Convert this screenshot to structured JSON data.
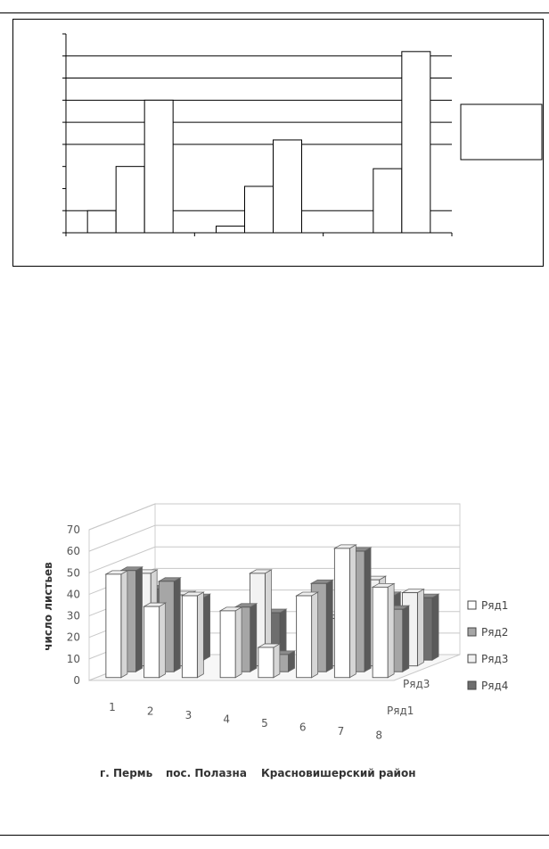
{
  "chart_data": [
    {
      "type": "bar",
      "groups": [
        [
          1,
          3,
          6
        ],
        [
          0.3,
          2.1,
          4.2
        ],
        [
          2.9,
          8.2
        ]
      ],
      "ylim": [
        0,
        9
      ],
      "gridlines": [
        1,
        4,
        5,
        6,
        7,
        8
      ],
      "legend": "right",
      "legend_entries": []
    },
    {
      "type": "bar",
      "categories": [
        "1",
        "2",
        "3",
        "4",
        "5",
        "6",
        "7",
        "8"
      ],
      "depth_labels": [
        "Ряд3",
        "Ряд1"
      ],
      "ylabel": "число листьев",
      "yticks": [
        "0",
        "10",
        "20",
        "30",
        "40",
        "50",
        "60",
        "70"
      ],
      "ylim": [
        0,
        70
      ],
      "grid": true,
      "legend": "right",
      "series": [
        {
          "name": "Ряд1",
          "values": [
            48,
            33,
            38,
            31,
            14,
            38,
            60,
            42
          ],
          "color": "#ffffff"
        },
        {
          "name": "Ряд2",
          "values": [
            47,
            42,
            null,
            30,
            8,
            41,
            56,
            29
          ],
          "color": "#a6a6a6"
        },
        {
          "name": "Ряд3",
          "values": [
            43,
            33,
            null,
            43,
            null,
            22,
            40,
            34
          ],
          "color": "#f2f2f2"
        },
        {
          "name": "Ряд4",
          "values": [
            33,
            29,
            null,
            22,
            19,
            23,
            30,
            29
          ],
          "color": "#6e6e6e"
        }
      ],
      "group_labels": [
        "г. Пермь",
        "пос. Полазна",
        "Красновишерский район"
      ]
    }
  ]
}
